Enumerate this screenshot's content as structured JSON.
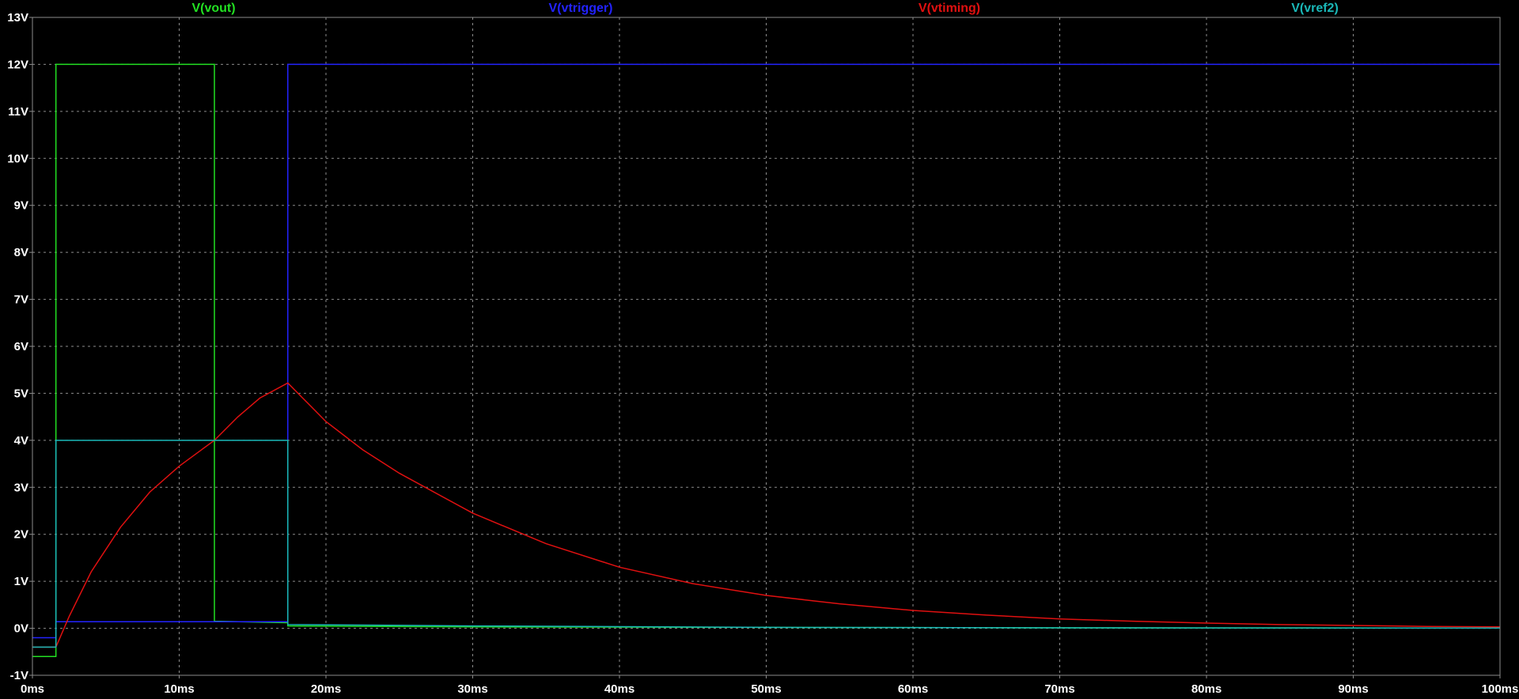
{
  "chart_data": {
    "type": "line",
    "xlabel": "",
    "ylabel": "",
    "xlim": [
      0,
      100
    ],
    "ylim": [
      -1,
      13
    ],
    "x_ticks": [
      0,
      10,
      20,
      30,
      40,
      50,
      60,
      70,
      80,
      90,
      100
    ],
    "x_tick_labels": [
      "0ms",
      "10ms",
      "20ms",
      "30ms",
      "40ms",
      "50ms",
      "60ms",
      "70ms",
      "80ms",
      "90ms",
      "100ms"
    ],
    "y_ticks": [
      -1,
      0,
      1,
      2,
      3,
      4,
      5,
      6,
      7,
      8,
      9,
      10,
      11,
      12,
      13
    ],
    "y_tick_labels": [
      "-1V",
      "0V",
      "1V",
      "2V",
      "3V",
      "4V",
      "5V",
      "6V",
      "7V",
      "8V",
      "9V",
      "10V",
      "11V",
      "12V",
      "13V"
    ],
    "grid": true,
    "legend_position": "top",
    "background": "#000000",
    "series": [
      {
        "name": "V(vout)",
        "color": "#22e022",
        "points": [
          [
            0,
            -0.6
          ],
          [
            1.6,
            -0.6
          ],
          [
            1.6,
            12
          ],
          [
            12.4,
            12
          ],
          [
            12.4,
            0.15
          ],
          [
            17.4,
            0.12
          ],
          [
            17.4,
            0.05
          ],
          [
            30,
            0.03
          ],
          [
            50,
            0.02
          ],
          [
            70,
            0.01
          ],
          [
            100,
            0.005
          ]
        ]
      },
      {
        "name": "V(vtrigger)",
        "color": "#2323ff",
        "points": [
          [
            0,
            -0.2
          ],
          [
            1.6,
            -0.2
          ],
          [
            1.6,
            0.14
          ],
          [
            12.4,
            0.14
          ],
          [
            17.4,
            0.14
          ],
          [
            17.4,
            12
          ],
          [
            100,
            12
          ]
        ]
      },
      {
        "name": "V(vtiming)",
        "color": "#e01010",
        "points": [
          [
            0,
            -0.4
          ],
          [
            1.6,
            -0.4
          ],
          [
            2.5,
            0.25
          ],
          [
            4,
            1.2
          ],
          [
            6,
            2.15
          ],
          [
            8,
            2.9
          ],
          [
            10,
            3.45
          ],
          [
            12.4,
            4.0
          ],
          [
            14,
            4.5
          ],
          [
            15.5,
            4.9
          ],
          [
            17.4,
            5.22
          ],
          [
            20,
            4.4
          ],
          [
            22.5,
            3.8
          ],
          [
            25,
            3.3
          ],
          [
            30,
            2.45
          ],
          [
            35,
            1.8
          ],
          [
            40,
            1.3
          ],
          [
            45,
            0.95
          ],
          [
            50,
            0.7
          ],
          [
            55,
            0.52
          ],
          [
            60,
            0.38
          ],
          [
            65,
            0.28
          ],
          [
            70,
            0.2
          ],
          [
            75,
            0.15
          ],
          [
            80,
            0.11
          ],
          [
            85,
            0.08
          ],
          [
            90,
            0.06
          ],
          [
            95,
            0.04
          ],
          [
            100,
            0.03
          ]
        ]
      },
      {
        "name": "V(vref2)",
        "color": "#1ab8b8",
        "points": [
          [
            0,
            -0.4
          ],
          [
            1.6,
            -0.4
          ],
          [
            1.6,
            4.0
          ],
          [
            17.4,
            4.0
          ],
          [
            17.4,
            0.08
          ],
          [
            30,
            0.05
          ],
          [
            50,
            0.02
          ],
          [
            70,
            0.01
          ],
          [
            100,
            0.005
          ]
        ]
      }
    ]
  }
}
